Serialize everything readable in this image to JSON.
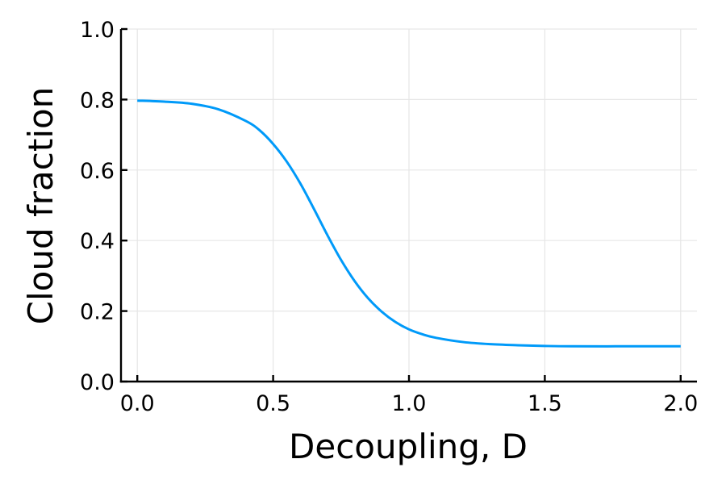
{
  "chart_data": {
    "type": "line",
    "xlabel": "Decoupling, D",
    "ylabel": "Cloud fraction",
    "xlim": [
      -0.06,
      2.06
    ],
    "ylim": [
      0.0,
      1.0
    ],
    "xticks": [
      0.0,
      0.5,
      1.0,
      1.5,
      2.0
    ],
    "xtick_labels": [
      "0.0",
      "0.5",
      "1.0",
      "1.5",
      "2.0"
    ],
    "yticks": [
      0.0,
      0.2,
      0.4,
      0.6,
      0.8,
      1.0
    ],
    "ytick_labels": [
      "0.0",
      "0.2",
      "0.4",
      "0.6",
      "0.8",
      "1.0"
    ],
    "grid": true,
    "legend": "none",
    "series": [
      {
        "color": "#009af9",
        "x": [
          0.0,
          0.1,
          0.2,
          0.3,
          0.4,
          0.45,
          0.5,
          0.55,
          0.6,
          0.65,
          0.7,
          0.75,
          0.8,
          0.85,
          0.9,
          0.95,
          1.0,
          1.05,
          1.1,
          1.2,
          1.3,
          1.4,
          1.5,
          1.6,
          1.8,
          2.0
        ],
        "y": [
          0.797,
          0.794,
          0.788,
          0.772,
          0.739,
          0.713,
          0.674,
          0.624,
          0.562,
          0.49,
          0.415,
          0.345,
          0.285,
          0.236,
          0.198,
          0.169,
          0.148,
          0.134,
          0.124,
          0.112,
          0.106,
          0.103,
          0.101,
          0.1,
          0.1,
          0.1
        ]
      }
    ]
  }
}
